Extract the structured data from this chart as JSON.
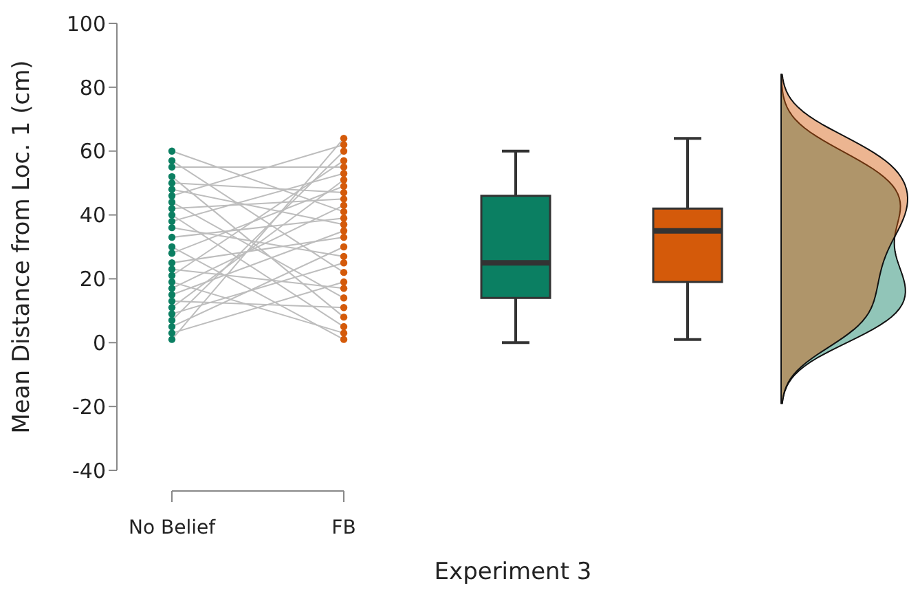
{
  "chart_data": {
    "type": "scatter",
    "xlabel": "Experiment 3",
    "ylabel": "Mean Distance from Loc. 1 (cm)",
    "categories": [
      "No Belief",
      "FB",
      null,
      null
    ],
    "ylim": [
      -40,
      100
    ],
    "yticks": [
      -40,
      -20,
      0,
      20,
      40,
      60,
      80,
      100
    ],
    "marker": "circle",
    "series": [
      {
        "type": "scatter",
        "color": "#0b7f62",
        "x": [
          "No Belief",
          "No Belief",
          "No Belief",
          "No Belief",
          "No Belief",
          "No Belief",
          "No Belief",
          "No Belief",
          "No Belief",
          "No Belief",
          "No Belief",
          "No Belief",
          "No Belief",
          "No Belief",
          "No Belief",
          "No Belief",
          "No Belief",
          "No Belief",
          "No Belief",
          "No Belief",
          "No Belief",
          "No Belief",
          "No Belief",
          "No Belief",
          "No Belief",
          "No Belief",
          "No Belief",
          "No Belief"
        ],
        "values": [
          60,
          57,
          55,
          52,
          50,
          48,
          46,
          44,
          42,
          40,
          38,
          36,
          33,
          30,
          28,
          25,
          23,
          21,
          19,
          17,
          15,
          13,
          11,
          9,
          7,
          5,
          3,
          1
        ]
      },
      {
        "type": "scatter",
        "color": "#d45a0a",
        "x": [
          "FB",
          "FB",
          "FB",
          "FB",
          "FB",
          "FB",
          "FB",
          "FB",
          "FB",
          "FB",
          "FB",
          "FB",
          "FB",
          "FB",
          "FB",
          "FB",
          "FB",
          "FB",
          "FB",
          "FB",
          "FB",
          "FB",
          "FB",
          "FB",
          "FB",
          "FB",
          "FB",
          "FB"
        ],
        "values": [
          41,
          22,
          55,
          8,
          47,
          37,
          62,
          14,
          45,
          5,
          53,
          27,
          39,
          1,
          49,
          33,
          17,
          57,
          3,
          43,
          35,
          11,
          51,
          25,
          60,
          30,
          19,
          64
        ]
      },
      {
        "type": "box",
        "color": "#0b7f62",
        "boxes": [
          null,
          null,
          {
            "low": 0,
            "q1": 14,
            "median": 25,
            "q3": 46,
            "high": 60
          },
          null
        ]
      },
      {
        "type": "box",
        "color": "#d45a0a",
        "boxes": [
          null,
          null,
          null,
          {
            "low": 1,
            "q1": 19,
            "median": 35,
            "q3": 42,
            "high": 64
          }
        ]
      }
    ]
  }
}
